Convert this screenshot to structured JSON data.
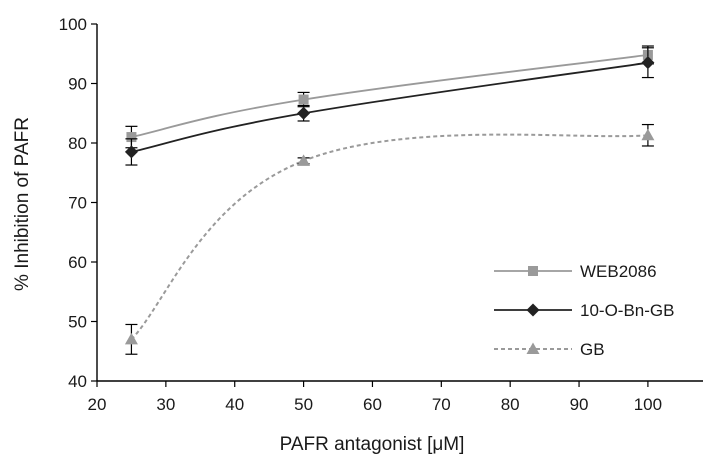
{
  "chart_data": {
    "type": "line",
    "xlabel": "PAFR antagonist [μM]",
    "ylabel": "% Inhibition of PAFR",
    "xlim": [
      20,
      108
    ],
    "ylim": [
      40,
      100
    ],
    "xticks": [
      20,
      30,
      40,
      50,
      60,
      70,
      80,
      90,
      100
    ],
    "yticks": [
      40,
      50,
      60,
      70,
      80,
      90,
      100
    ],
    "grid": false,
    "legend_position": "lower-right",
    "series": [
      {
        "name": "WEB2086",
        "marker": "square",
        "line_style": "solid",
        "color": "#9a9a9a",
        "x": [
          25,
          50,
          100
        ],
        "y": [
          81,
          87.3,
          94.8
        ],
        "error": [
          1.8,
          1.2,
          1.5
        ]
      },
      {
        "name": "10-O-Bn-GB",
        "marker": "diamond",
        "line_style": "solid",
        "color": "#222222",
        "x": [
          25,
          50,
          100
        ],
        "y": [
          78.5,
          85,
          93.5
        ],
        "error": [
          2.2,
          1.3,
          2.5
        ]
      },
      {
        "name": "GB",
        "marker": "triangle",
        "line_style": "dashed",
        "color": "#9a9a9a",
        "x": [
          25,
          50,
          100
        ],
        "y": [
          47,
          77,
          81.3
        ],
        "error": [
          2.5,
          0.5,
          1.8
        ]
      }
    ]
  }
}
